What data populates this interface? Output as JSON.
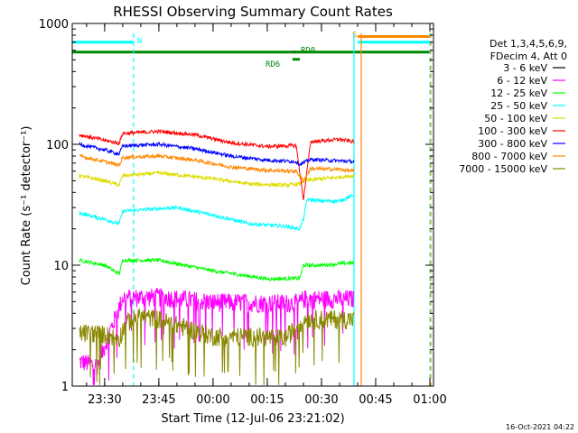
{
  "chart_data": {
    "type": "line",
    "title": "RHESSI Observing Summary Count Rates",
    "xlabel": "Start Time (12-Jul-06 23:21:02)",
    "ylabel": "Count Rate (s⁻¹ detector⁻¹)",
    "yscale": "log",
    "ylim": [
      1,
      1000
    ],
    "xlim": [
      "23:21:02",
      "01:01:00"
    ],
    "xticks": [
      "23:30",
      "23:45",
      "00:00",
      "00:15",
      "00:30",
      "00:45",
      "01:00"
    ],
    "yticks": [
      "1",
      "10",
      "100",
      "1000"
    ],
    "grid": false,
    "legend": {
      "position": "right",
      "header": [
        "Det 1,3,4,5,6,9,",
        "FDecim 4, Att 0"
      ],
      "entries": [
        {
          "label": "3 - 6 keV",
          "color": "#000000"
        },
        {
          "label": "6 - 12 keV",
          "color": "#ff00ff"
        },
        {
          "label": "12 - 25 keV",
          "color": "#00ff00"
        },
        {
          "label": "25 - 50 keV",
          "color": "#00ffff"
        },
        {
          "label": "50 - 100 keV",
          "color": "#dddd00"
        },
        {
          "label": "100 - 300 keV",
          "color": "#ff0000"
        },
        {
          "label": "300 - 800 keV",
          "color": "#0000ff"
        },
        {
          "label": "800 - 7000 keV",
          "color": "#ff8800"
        },
        {
          "label": "7000 - 15000 keV",
          "color": "#888800"
        }
      ]
    },
    "series": [
      {
        "name": "6 - 12 keV",
        "color": "#ff00ff",
        "points": [
          [
            "23:23",
            1.6
          ],
          [
            "23:28",
            1.5
          ],
          [
            "23:35",
            5.4
          ],
          [
            "23:45",
            5.5
          ],
          [
            "00:00",
            5.0
          ],
          [
            "00:15",
            4.9
          ],
          [
            "00:24",
            4.9
          ],
          [
            "00:25",
            5.3
          ],
          [
            "00:35",
            5.3
          ],
          [
            "00:39",
            5.3
          ]
        ]
      },
      {
        "name": "12 - 25 keV",
        "color": "#00ff00",
        "points": [
          [
            "23:23",
            11
          ],
          [
            "23:30",
            10
          ],
          [
            "23:34",
            8.5
          ],
          [
            "23:35",
            11
          ],
          [
            "23:45",
            11
          ],
          [
            "00:00",
            9.0
          ],
          [
            "00:15",
            7.7
          ],
          [
            "00:24",
            7.8
          ],
          [
            "00:25",
            10
          ],
          [
            "00:30",
            10
          ],
          [
            "00:39",
            10.5
          ]
        ]
      },
      {
        "name": "25 - 50 keV",
        "color": "#00ffff",
        "points": [
          [
            "23:23",
            27
          ],
          [
            "23:30",
            24
          ],
          [
            "23:34",
            22
          ],
          [
            "23:35",
            28
          ],
          [
            "23:42",
            29
          ],
          [
            "23:50",
            30
          ],
          [
            "00:00",
            26
          ],
          [
            "00:10",
            22
          ],
          [
            "00:20",
            21
          ],
          [
            "00:24",
            20
          ],
          [
            "00:25",
            24
          ],
          [
            "00:26",
            35
          ],
          [
            "00:30",
            34
          ],
          [
            "00:35",
            34
          ],
          [
            "00:39",
            38
          ]
        ]
      },
      {
        "name": "50 - 100 keV",
        "color": "#dddd00",
        "points": [
          [
            "23:23",
            55
          ],
          [
            "23:30",
            50
          ],
          [
            "23:34",
            46
          ],
          [
            "23:35",
            55
          ],
          [
            "23:45",
            58
          ],
          [
            "00:00",
            52
          ],
          [
            "00:10",
            47
          ],
          [
            "00:20",
            46
          ],
          [
            "00:24",
            47
          ],
          [
            "00:25",
            50
          ],
          [
            "00:30",
            52
          ],
          [
            "00:39",
            55
          ]
        ]
      },
      {
        "name": "100 - 300 keV",
        "color": "#ff0000",
        "points": [
          [
            "23:23",
            120
          ],
          [
            "23:30",
            108
          ],
          [
            "23:34",
            102
          ],
          [
            "23:35",
            123
          ],
          [
            "23:45",
            128
          ],
          [
            "23:55",
            120
          ],
          [
            "00:05",
            103
          ],
          [
            "00:15",
            96
          ],
          [
            "00:23",
            98
          ],
          [
            "00:25",
            35
          ],
          [
            "00:27",
            105
          ],
          [
            "00:35",
            110
          ],
          [
            "00:39",
            105
          ]
        ]
      },
      {
        "name": "300 - 800 keV",
        "color": "#0000ff",
        "points": [
          [
            "23:23",
            100
          ],
          [
            "23:30",
            90
          ],
          [
            "23:34",
            83
          ],
          [
            "23:35",
            97
          ],
          [
            "23:45",
            100
          ],
          [
            "23:55",
            92
          ],
          [
            "00:05",
            80
          ],
          [
            "00:15",
            74
          ],
          [
            "00:23",
            72
          ],
          [
            "00:24",
            68
          ],
          [
            "00:27",
            75
          ],
          [
            "00:35",
            73
          ],
          [
            "00:39",
            72
          ]
        ]
      },
      {
        "name": "800 - 7000 keV",
        "color": "#ff8800",
        "points": [
          [
            "23:23",
            80
          ],
          [
            "23:30",
            72
          ],
          [
            "23:34",
            67
          ],
          [
            "23:35",
            78
          ],
          [
            "23:45",
            80
          ],
          [
            "23:55",
            74
          ],
          [
            "00:05",
            65
          ],
          [
            "00:15",
            61
          ],
          [
            "00:23",
            60
          ],
          [
            "00:25",
            50
          ],
          [
            "00:27",
            63
          ],
          [
            "00:35",
            62
          ],
          [
            "00:39",
            60
          ]
        ]
      },
      {
        "name": "7000 - 15000 keV",
        "color": "#888800",
        "points": [
          [
            "23:23",
            2.8
          ],
          [
            "23:30",
            2.7
          ],
          [
            "23:34",
            2.5
          ],
          [
            "23:36",
            3.4
          ],
          [
            "23:40",
            3.8
          ],
          [
            "23:45",
            3.6
          ],
          [
            "00:00",
            2.6
          ],
          [
            "00:10",
            2.6
          ],
          [
            "00:20",
            2.5
          ],
          [
            "00:25",
            3.6
          ],
          [
            "00:30",
            3.6
          ],
          [
            "00:39",
            3.6
          ]
        ]
      }
    ],
    "flags": [
      {
        "label": "N",
        "color": "#00ffff",
        "y": 700,
        "start": "23:21:02",
        "end": "23:38"
      },
      {
        "label": "S",
        "color": "#ff8800",
        "y": 780,
        "start": "00:40",
        "end": "01:00"
      },
      {
        "label": "",
        "color": "#00ffff",
        "y": 700,
        "start": "00:40",
        "end": "01:00"
      },
      {
        "label": "",
        "color": "#008800",
        "y": 580,
        "start": "23:21:02",
        "end": "01:00"
      },
      {
        "label": "RD6",
        "color": "#008800",
        "y": 505,
        "start": "00:22",
        "end": "00:24"
      },
      {
        "label": "RD0",
        "color": "#008800",
        "y": 580,
        "start": "00:22",
        "end": "00:23"
      }
    ],
    "vlines": [
      {
        "time": "23:38",
        "color": "#00ffff",
        "style": "dashed"
      },
      {
        "time": "00:39",
        "color": "#00ffff",
        "style": "solid"
      },
      {
        "time": "00:40",
        "color": "#ff8800",
        "style": "solid"
      },
      {
        "time": "01:00",
        "color": "#00ffff",
        "style": "dashed"
      },
      {
        "time": "01:00",
        "color": "#ff8800",
        "style": "dashed"
      }
    ],
    "footer": "16-Oct-2021 04:22"
  }
}
